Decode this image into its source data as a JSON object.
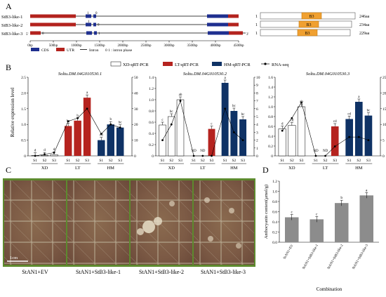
{
  "panels": {
    "A": "A",
    "B": "B",
    "C": "C",
    "D": "D"
  },
  "panelA": {
    "genes": [
      {
        "name": "StB3-like-1",
        "start": "1",
        "end": "246aa"
      },
      {
        "name": "StB3-like-2",
        "start": "1",
        "end": "234aa"
      },
      {
        "name": "StB3-like-3",
        "start": "1",
        "end": "229aa"
      }
    ],
    "intron_phase_labels": [
      "1",
      "0",
      "0",
      "1",
      "0",
      "1"
    ],
    "utr_end_labels": [
      "5'",
      "3'"
    ],
    "domain_label": "B3",
    "scale_ticks": [
      "0bp",
      "500bp",
      "1000bp",
      "1500bp",
      "2000bp",
      "2500bp",
      "3000bp",
      "3500bp",
      "4000bp",
      "4500bp"
    ],
    "legend": {
      "cds": "CDS",
      "utr": "UTR",
      "intron": "Intron",
      "phase": "0 1 : intron phase"
    },
    "colors": {
      "cds": "#1f2f8f",
      "utr": "#b3231e",
      "domain": "#f0a030",
      "domain_border": "#c07a12"
    }
  },
  "panelB": {
    "legend": {
      "xd": "XD-qRT-PCR",
      "lt": "LT-qRT-PCR",
      "hm": "HM-qRT-PCR",
      "rna": "RNA-seq"
    },
    "ylabel_left": "Relative expression level",
    "colors": {
      "xd": "#ffffff",
      "lt": "#b5231f",
      "hm": "#0f3265"
    }
  },
  "chart_data": [
    {
      "type": "bar",
      "title": "Soltu.DM.04G010530.1",
      "categories": [
        "S1",
        "S2",
        "S3",
        "S1",
        "S2",
        "S3",
        "S1",
        "S2",
        "S3"
      ],
      "groups": [
        "XD",
        "LT",
        "HM"
      ],
      "ylim_left": [
        0,
        2.5
      ],
      "yticks_left": [
        "0",
        "0.5",
        "1.0",
        "1.5",
        "2.0",
        "2.5"
      ],
      "ylim_right": [
        0,
        50
      ],
      "yticks_right": [
        "0",
        "10",
        "20",
        "30",
        "40",
        "50"
      ],
      "series": [
        {
          "name": "qRT-PCR",
          "values": [
            0.01,
            0.02,
            0.04,
            0.95,
            1.12,
            1.85,
            0.5,
            1.0,
            0.9
          ]
        },
        {
          "name": "RNA-seq",
          "values": [
            0,
            1,
            2,
            22,
            24,
            30,
            14,
            20,
            18
          ]
        }
      ],
      "sig_labels": [
        "d",
        "d",
        "d",
        "bc",
        "b",
        "a",
        "cd",
        "b",
        "bc"
      ]
    },
    {
      "type": "bar",
      "title": "Soltu.DM.04G010530.2",
      "categories": [
        "S1",
        "S2",
        "S3",
        "S1",
        "S2",
        "S3",
        "S1",
        "S2",
        "S3"
      ],
      "groups": [
        "XD",
        "LT",
        "HM"
      ],
      "ylim_left": [
        0,
        1.4
      ],
      "yticks_left": [
        "0",
        "0.2",
        "0.4",
        "0.6",
        "0.8",
        "1.0",
        "1.2",
        "1.4"
      ],
      "ylim_right": [
        0,
        10
      ],
      "yticks_right": [
        "0",
        "1",
        "2",
        "3",
        "4",
        "5",
        "6",
        "7",
        "8",
        "9",
        "10"
      ],
      "series": [
        {
          "name": "qRT-PCR",
          "values": [
            0.55,
            0.7,
            1.0,
            0.0,
            0.0,
            0.48,
            1.3,
            0.8,
            0.65
          ]
        },
        {
          "name": "RNA-seq",
          "values": [
            2,
            4,
            7,
            0,
            0,
            0,
            6,
            3,
            2
          ]
        }
      ],
      "sig_labels": [
        "c",
        "bc",
        "ab",
        "ND",
        "ND",
        "c",
        "a",
        "bc",
        "bc"
      ]
    },
    {
      "type": "bar",
      "title": "Soltu.DM.04G010530.3",
      "categories": [
        "S1",
        "S2",
        "S3",
        "S1",
        "S2",
        "S3",
        "S1",
        "S2",
        "S3"
      ],
      "groups": [
        "XD",
        "LT",
        "HM"
      ],
      "ylim_left": [
        0,
        1.6
      ],
      "yticks_left": [
        "0",
        "0.2",
        "0.4",
        "0.6",
        "0.8",
        "1.0",
        "1.2",
        "1.4",
        "1.6"
      ],
      "ylim_right": [
        0,
        25
      ],
      "yticks_right": [
        "0",
        "5",
        "10",
        "15",
        "20",
        "25"
      ],
      "series": [
        {
          "name": "qRT-PCR",
          "values": [
            0.55,
            0.62,
            1.0,
            0.0,
            0.0,
            0.6,
            0.75,
            1.1,
            0.82
          ]
        },
        {
          "name": "RNA-seq",
          "values": [
            8,
            12,
            17,
            0,
            0,
            3,
            6,
            6,
            5
          ]
        }
      ],
      "sig_labels": [
        "d",
        "cd",
        "ab",
        "ND",
        "ND",
        "cd",
        "cd",
        "a",
        "bc"
      ]
    },
    {
      "type": "bar",
      "title": "",
      "xlabel": "Combination",
      "ylabel": "Anthocyanin content(μmol/g)",
      "categories": [
        "StAN1+EV",
        "StAN1+StB3-like-1",
        "StAN1+StB3-like-2",
        "StAN1+StB3-like-3"
      ],
      "values": [
        0.49,
        0.45,
        0.77,
        0.92
      ],
      "ylim": [
        0,
        1.2
      ],
      "yticks": [
        "0.0",
        "0.2",
        "0.4",
        "0.6",
        "0.8",
        "1.0",
        "1.2"
      ],
      "sig_labels": [
        "c",
        "c",
        "b",
        "a"
      ]
    }
  ],
  "panelC": {
    "labels": [
      "StAN1+EV",
      "StAN1+StB3-like-1",
      "StAN1+StB3-like-2",
      "StAN1+StB3-like-3"
    ],
    "scale_bar": "1cm"
  }
}
